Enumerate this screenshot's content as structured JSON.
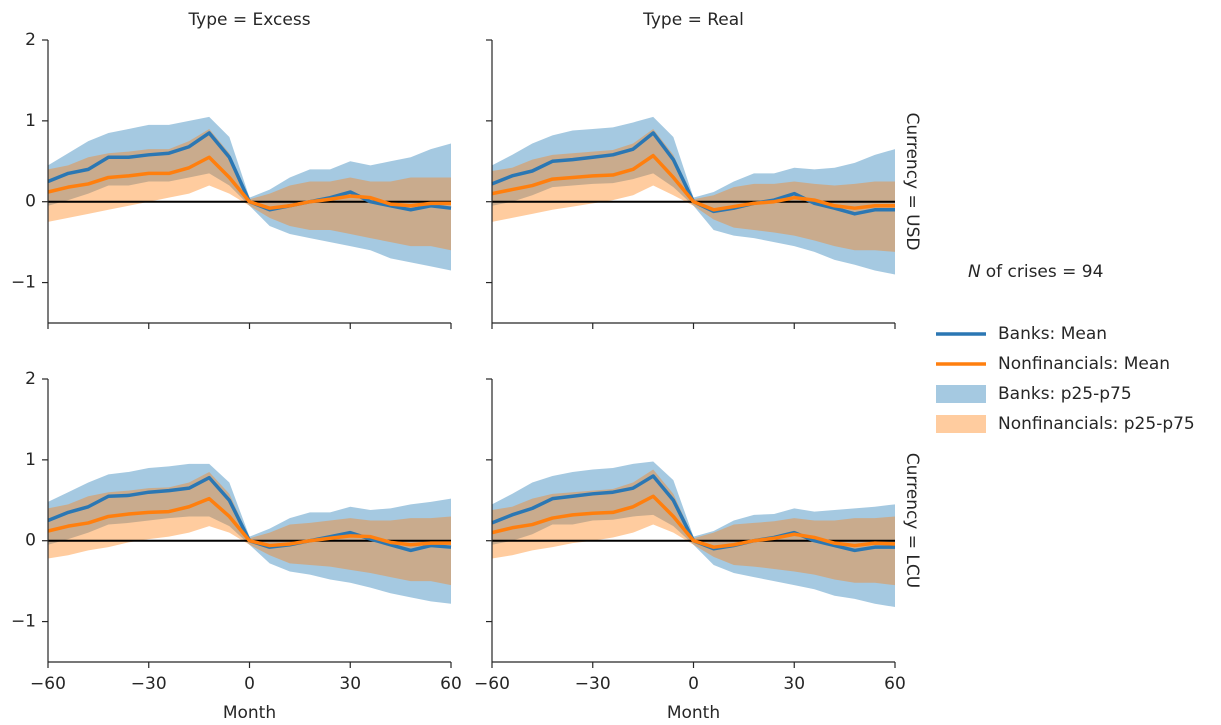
{
  "chart_data": [
    {
      "type": "line",
      "title": "Type = Excess",
      "row_label": "Currency = USD",
      "annotation": {
        "symbol": "N",
        "text": "of crises = 94"
      },
      "x": [
        -60,
        -54,
        -48,
        -42,
        -36,
        -30,
        -24,
        -18,
        -12,
        -6,
        0,
        6,
        12,
        18,
        24,
        30,
        36,
        42,
        48,
        54,
        60
      ],
      "xlim": [
        -60,
        60
      ],
      "xticks": [
        -60,
        -30,
        0,
        30,
        60
      ],
      "ylim": [
        -1.5,
        2
      ],
      "yticks": [
        {
          "value": -1,
          "label": "−1"
        },
        0,
        1,
        2
      ],
      "hline": 0,
      "series": [
        {
          "name": "Banks: Mean",
          "color": "#2b77b3",
          "values": [
            0.25,
            0.35,
            0.4,
            0.55,
            0.55,
            0.58,
            0.6,
            0.68,
            0.85,
            0.55,
            0.0,
            -0.1,
            -0.05,
            0.0,
            0.05,
            0.12,
            0.0,
            -0.05,
            -0.1,
            -0.05,
            -0.08
          ]
        },
        {
          "name": "Nonfinancials: Mean",
          "color": "#ff7f0e",
          "values": [
            0.12,
            0.18,
            0.22,
            0.3,
            0.32,
            0.35,
            0.35,
            0.42,
            0.55,
            0.3,
            0.0,
            -0.08,
            -0.05,
            0.0,
            0.03,
            0.07,
            0.05,
            -0.03,
            -0.05,
            -0.02,
            -0.02
          ]
        }
      ],
      "bands": [
        {
          "name": "Banks: p25-p75",
          "color": "#1f77b4",
          "lower": [
            -0.05,
            0.02,
            0.1,
            0.2,
            0.2,
            0.25,
            0.25,
            0.3,
            0.35,
            0.2,
            -0.05,
            -0.3,
            -0.4,
            -0.45,
            -0.5,
            -0.55,
            -0.6,
            -0.7,
            -0.75,
            -0.8,
            -0.85
          ],
          "upper": [
            0.45,
            0.6,
            0.75,
            0.85,
            0.9,
            0.95,
            0.95,
            1.0,
            1.05,
            0.8,
            0.05,
            0.15,
            0.3,
            0.4,
            0.4,
            0.5,
            0.45,
            0.5,
            0.55,
            0.65,
            0.72
          ]
        },
        {
          "name": "Nonfinancials: p25-p75",
          "color": "#ff7f0e",
          "lower": [
            -0.25,
            -0.2,
            -0.15,
            -0.1,
            -0.05,
            0.0,
            0.05,
            0.1,
            0.2,
            0.1,
            -0.05,
            -0.2,
            -0.3,
            -0.35,
            -0.35,
            -0.4,
            -0.45,
            -0.5,
            -0.55,
            -0.55,
            -0.6
          ],
          "upper": [
            0.4,
            0.45,
            0.55,
            0.6,
            0.62,
            0.65,
            0.65,
            0.75,
            0.9,
            0.6,
            0.03,
            0.1,
            0.2,
            0.25,
            0.25,
            0.3,
            0.25,
            0.25,
            0.3,
            0.3,
            0.3
          ]
        }
      ]
    },
    {
      "type": "line",
      "title": "Type = Real",
      "x": [
        -60,
        -54,
        -48,
        -42,
        -36,
        -30,
        -24,
        -18,
        -12,
        -6,
        0,
        6,
        12,
        18,
        24,
        30,
        36,
        42,
        48,
        54,
        60
      ],
      "xlim": [
        -60,
        60
      ],
      "xticks": [
        -60,
        -30,
        0,
        30,
        60
      ],
      "ylim": [
        -1.5,
        2
      ],
      "yticks": [
        -1,
        0,
        1,
        2
      ],
      "hline": 0,
      "series": [
        {
          "color": "#2b77b3",
          "values": [
            0.22,
            0.32,
            0.38,
            0.5,
            0.52,
            0.55,
            0.58,
            0.65,
            0.85,
            0.52,
            0.0,
            -0.12,
            -0.08,
            -0.02,
            0.02,
            0.1,
            -0.02,
            -0.08,
            -0.15,
            -0.1,
            -0.1
          ]
        },
        {
          "color": "#ff7f0e",
          "values": [
            0.1,
            0.15,
            0.2,
            0.28,
            0.3,
            0.32,
            0.33,
            0.4,
            0.57,
            0.3,
            0.0,
            -0.1,
            -0.06,
            -0.02,
            0.0,
            0.05,
            0.02,
            -0.05,
            -0.08,
            -0.05,
            -0.05
          ]
        }
      ],
      "bands": [
        {
          "color": "#1f77b4",
          "lower": [
            -0.05,
            0.0,
            0.08,
            0.18,
            0.2,
            0.22,
            0.23,
            0.28,
            0.35,
            0.18,
            -0.05,
            -0.35,
            -0.42,
            -0.45,
            -0.5,
            -0.55,
            -0.62,
            -0.72,
            -0.78,
            -0.85,
            -0.9
          ],
          "upper": [
            0.45,
            0.58,
            0.72,
            0.82,
            0.88,
            0.9,
            0.92,
            0.98,
            1.05,
            0.8,
            0.05,
            0.12,
            0.25,
            0.35,
            0.35,
            0.42,
            0.4,
            0.42,
            0.48,
            0.58,
            0.65
          ]
        },
        {
          "color": "#ff7f0e",
          "lower": [
            -0.25,
            -0.2,
            -0.15,
            -0.1,
            -0.06,
            -0.02,
            0.02,
            0.08,
            0.2,
            0.08,
            -0.05,
            -0.22,
            -0.32,
            -0.35,
            -0.38,
            -0.42,
            -0.48,
            -0.55,
            -0.6,
            -0.6,
            -0.62
          ],
          "upper": [
            0.38,
            0.42,
            0.52,
            0.58,
            0.6,
            0.62,
            0.64,
            0.72,
            0.9,
            0.58,
            0.03,
            0.08,
            0.18,
            0.22,
            0.22,
            0.25,
            0.22,
            0.2,
            0.22,
            0.25,
            0.25
          ]
        }
      ]
    },
    {
      "type": "line",
      "row_label": "Currency = LCU",
      "xlabel": "Month",
      "x": [
        -60,
        -54,
        -48,
        -42,
        -36,
        -30,
        -24,
        -18,
        -12,
        -6,
        0,
        6,
        12,
        18,
        24,
        30,
        36,
        42,
        48,
        54,
        60
      ],
      "xlim": [
        -60,
        60
      ],
      "xticks": [
        {
          "value": -60,
          "label": "−60"
        },
        {
          "value": -30,
          "label": "−30"
        },
        0,
        30,
        60
      ],
      "ylim": [
        -1.5,
        2
      ],
      "yticks": [
        {
          "value": -1,
          "label": "−1"
        },
        0,
        1,
        2
      ],
      "hline": 0,
      "series": [
        {
          "color": "#2b77b3",
          "values": [
            0.25,
            0.35,
            0.42,
            0.55,
            0.56,
            0.6,
            0.62,
            0.65,
            0.78,
            0.5,
            0.0,
            -0.08,
            -0.05,
            0.0,
            0.05,
            0.1,
            0.02,
            -0.05,
            -0.12,
            -0.06,
            -0.08
          ]
        },
        {
          "color": "#ff7f0e",
          "values": [
            0.12,
            0.18,
            0.22,
            0.3,
            0.33,
            0.35,
            0.36,
            0.42,
            0.52,
            0.3,
            0.0,
            -0.06,
            -0.04,
            0.0,
            0.03,
            0.06,
            0.05,
            -0.02,
            -0.05,
            -0.03,
            -0.03
          ]
        }
      ],
      "bands": [
        {
          "color": "#1f77b4",
          "lower": [
            -0.05,
            0.02,
            0.1,
            0.2,
            0.22,
            0.25,
            0.28,
            0.3,
            0.3,
            0.18,
            -0.05,
            -0.28,
            -0.38,
            -0.42,
            -0.48,
            -0.52,
            -0.58,
            -0.65,
            -0.7,
            -0.75,
            -0.78
          ],
          "upper": [
            0.48,
            0.6,
            0.72,
            0.82,
            0.85,
            0.9,
            0.92,
            0.95,
            0.95,
            0.72,
            0.05,
            0.15,
            0.28,
            0.35,
            0.35,
            0.42,
            0.38,
            0.4,
            0.45,
            0.48,
            0.52
          ]
        },
        {
          "color": "#ff7f0e",
          "lower": [
            -0.22,
            -0.18,
            -0.12,
            -0.08,
            -0.02,
            0.02,
            0.05,
            0.1,
            0.18,
            0.1,
            -0.05,
            -0.18,
            -0.28,
            -0.3,
            -0.32,
            -0.36,
            -0.4,
            -0.45,
            -0.5,
            -0.5,
            -0.55
          ],
          "upper": [
            0.4,
            0.45,
            0.55,
            0.6,
            0.62,
            0.65,
            0.66,
            0.72,
            0.85,
            0.58,
            0.03,
            0.1,
            0.2,
            0.22,
            0.25,
            0.28,
            0.25,
            0.25,
            0.28,
            0.28,
            0.3
          ]
        }
      ]
    },
    {
      "type": "line",
      "xlabel": "Month",
      "x": [
        -60,
        -54,
        -48,
        -42,
        -36,
        -30,
        -24,
        -18,
        -12,
        -6,
        0,
        6,
        12,
        18,
        24,
        30,
        36,
        42,
        48,
        54,
        60
      ],
      "xlim": [
        -60,
        60
      ],
      "xticks": [
        {
          "value": -60,
          "label": "−60"
        },
        {
          "value": -30,
          "label": "−30"
        },
        0,
        30,
        60
      ],
      "ylim": [
        -1.5,
        2
      ],
      "yticks": [
        -1,
        0,
        1,
        2
      ],
      "hline": 0,
      "series": [
        {
          "color": "#2b77b3",
          "values": [
            0.22,
            0.32,
            0.4,
            0.52,
            0.55,
            0.58,
            0.6,
            0.65,
            0.8,
            0.5,
            0.0,
            -0.1,
            -0.06,
            0.0,
            0.04,
            0.1,
            0.0,
            -0.06,
            -0.12,
            -0.08,
            -0.08
          ]
        },
        {
          "color": "#ff7f0e",
          "values": [
            0.1,
            0.16,
            0.2,
            0.28,
            0.32,
            0.34,
            0.35,
            0.42,
            0.55,
            0.3,
            0.0,
            -0.08,
            -0.05,
            0.0,
            0.03,
            0.08,
            0.04,
            -0.03,
            -0.06,
            -0.03,
            -0.04
          ]
        }
      ],
      "bands": [
        {
          "color": "#1f77b4",
          "lower": [
            -0.05,
            0.0,
            0.08,
            0.2,
            0.2,
            0.25,
            0.26,
            0.3,
            0.32,
            0.18,
            -0.05,
            -0.3,
            -0.4,
            -0.45,
            -0.5,
            -0.55,
            -0.6,
            -0.68,
            -0.72,
            -0.78,
            -0.82
          ],
          "upper": [
            0.45,
            0.58,
            0.72,
            0.8,
            0.85,
            0.88,
            0.9,
            0.95,
            0.98,
            0.75,
            0.05,
            0.12,
            0.25,
            0.32,
            0.33,
            0.4,
            0.36,
            0.38,
            0.4,
            0.42,
            0.45
          ]
        },
        {
          "color": "#ff7f0e",
          "lower": [
            -0.22,
            -0.18,
            -0.12,
            -0.08,
            -0.03,
            0.0,
            0.04,
            0.1,
            0.2,
            0.1,
            -0.05,
            -0.2,
            -0.3,
            -0.32,
            -0.35,
            -0.38,
            -0.42,
            -0.48,
            -0.52,
            -0.52,
            -0.55
          ],
          "upper": [
            0.38,
            0.42,
            0.52,
            0.58,
            0.6,
            0.62,
            0.64,
            0.72,
            0.88,
            0.58,
            0.03,
            0.1,
            0.2,
            0.22,
            0.24,
            0.28,
            0.25,
            0.25,
            0.28,
            0.28,
            0.3
          ]
        }
      ]
    }
  ]
}
